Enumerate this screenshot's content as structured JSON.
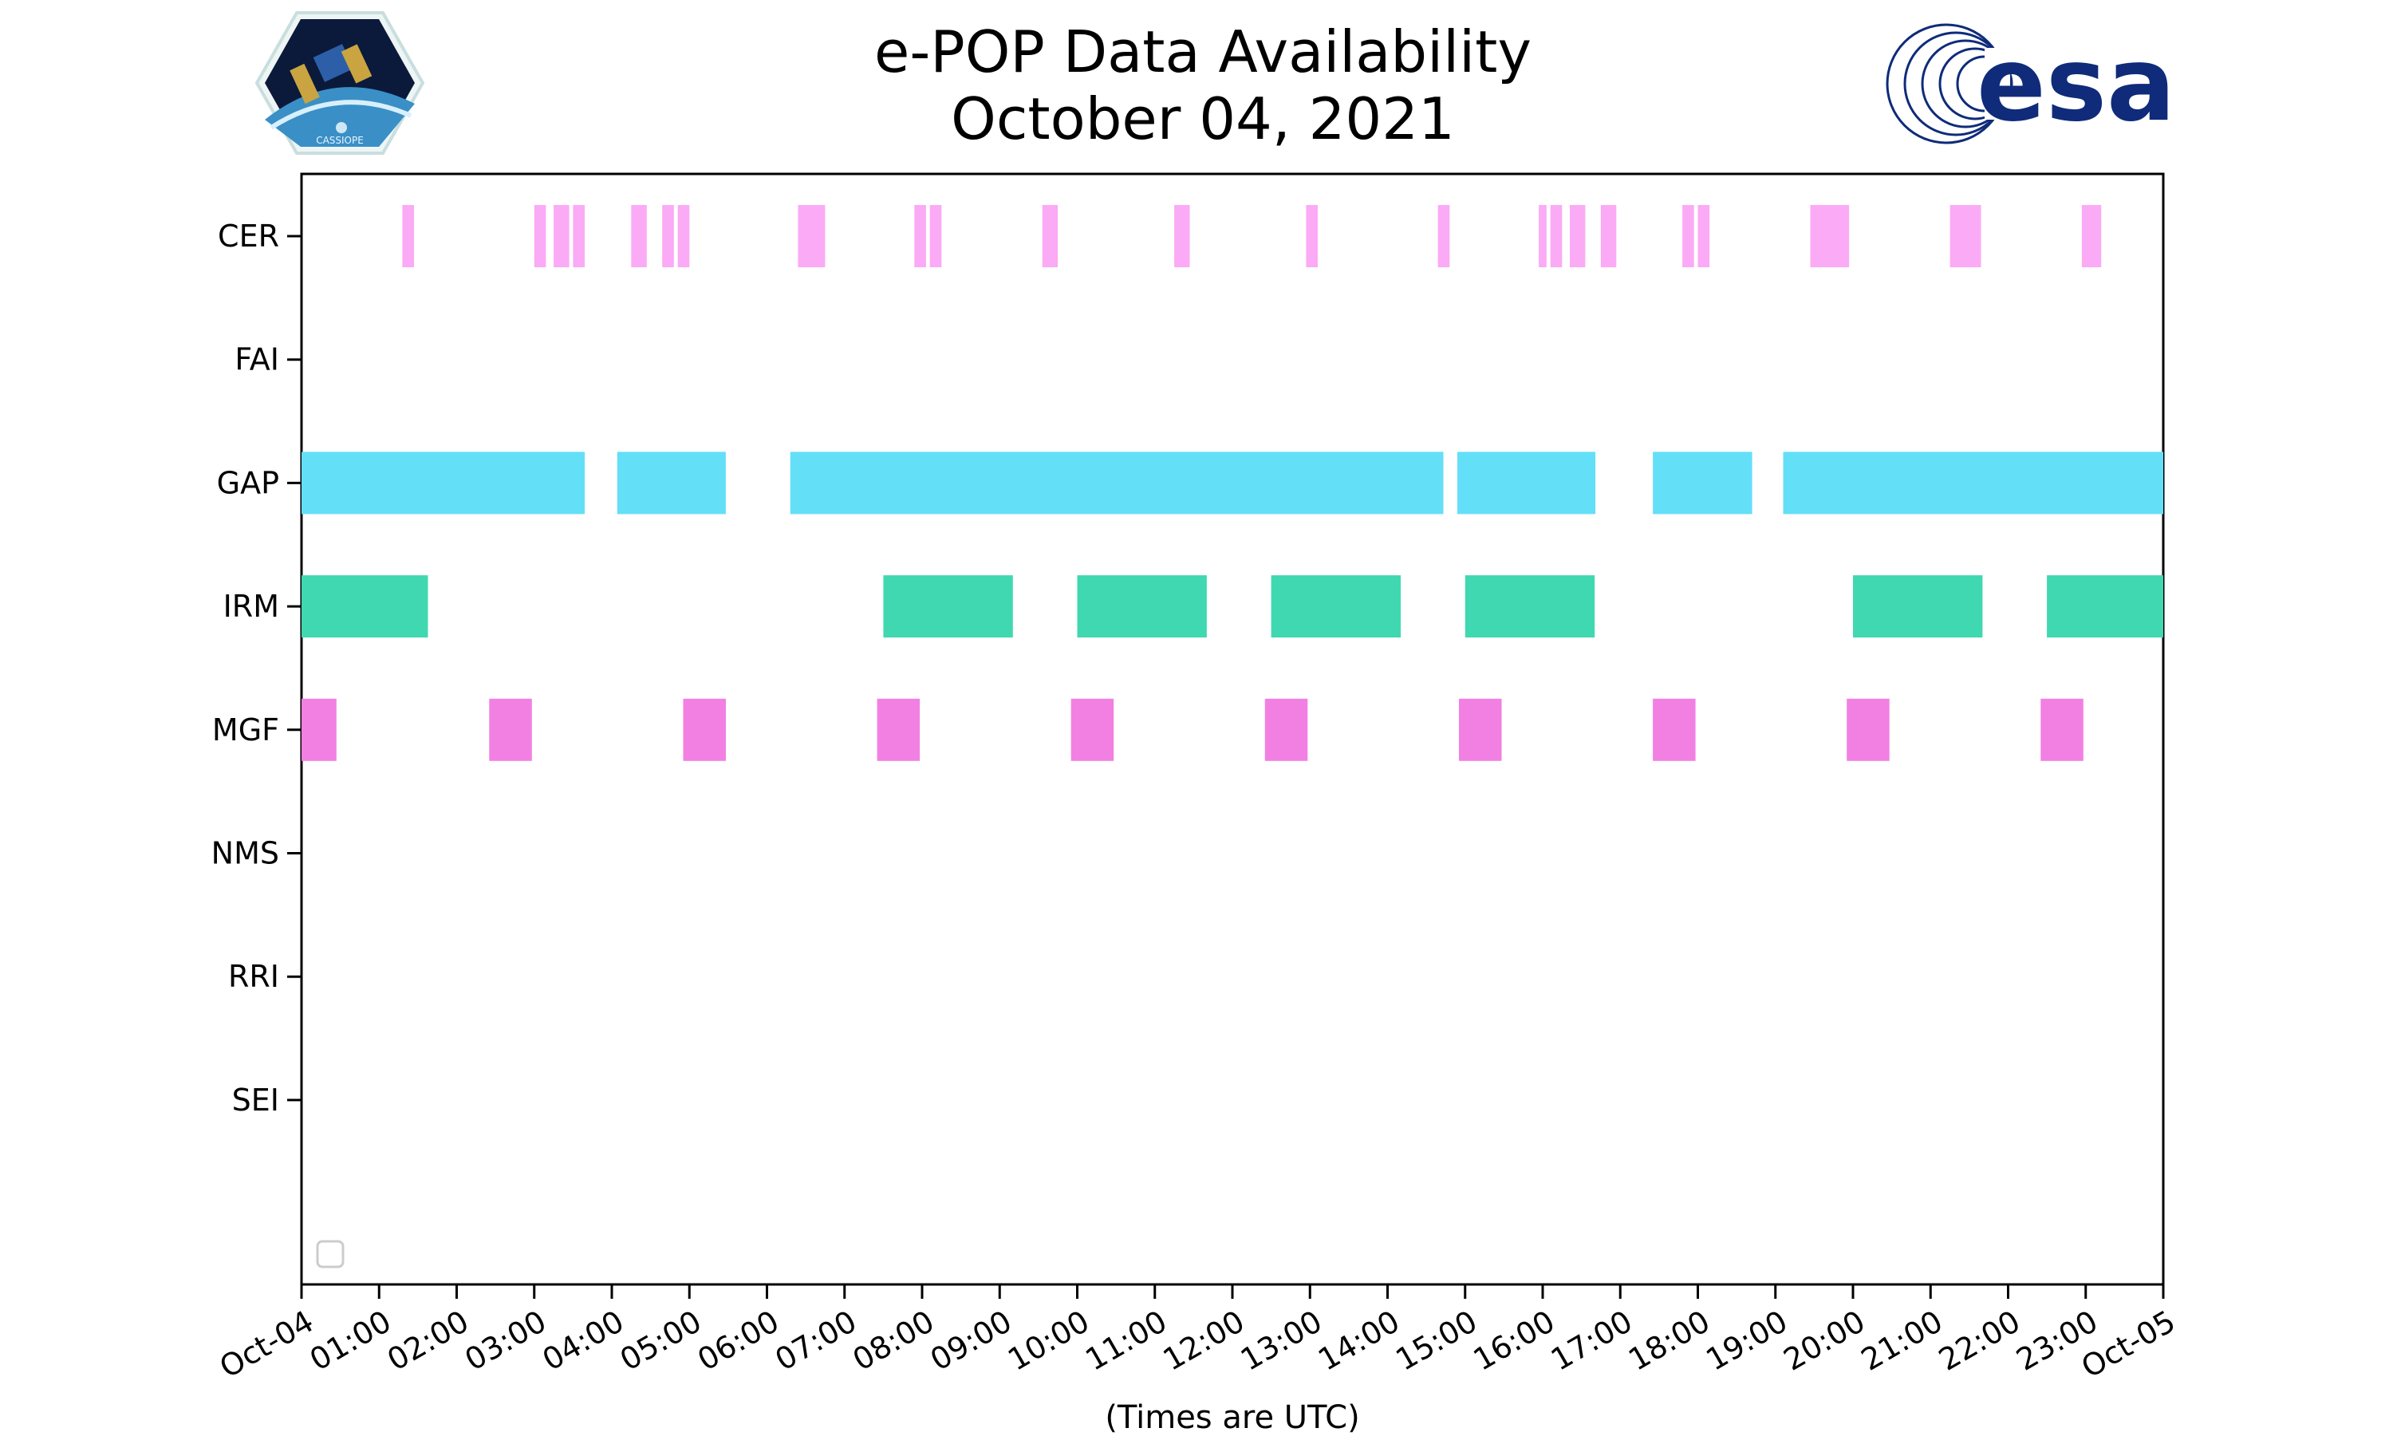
{
  "chart_data": {
    "type": "timeline",
    "title": [
      "e-POP Data Availability",
      "October 04, 2021"
    ],
    "xlabel": "(Times are UTC)",
    "xlim": [
      0,
      24
    ],
    "x_tick_labels": [
      "Oct-04",
      "01:00",
      "02:00",
      "03:00",
      "04:00",
      "05:00",
      "06:00",
      "07:00",
      "08:00",
      "09:00",
      "10:00",
      "11:00",
      "12:00",
      "13:00",
      "14:00",
      "15:00",
      "16:00",
      "17:00",
      "18:00",
      "19:00",
      "20:00",
      "21:00",
      "22:00",
      "23:00",
      "Oct-05"
    ],
    "categories": [
      "CER",
      "FAI",
      "GAP",
      "IRM",
      "MGF",
      "NMS",
      "RRI",
      "SEI"
    ],
    "grid": false,
    "legend": "bottom-left (empty)",
    "series": [
      {
        "name": "CER",
        "color": "#fbaaf5",
        "intervals": [
          [
            1.3,
            1.45
          ],
          [
            3.0,
            3.15
          ],
          [
            3.25,
            3.45
          ],
          [
            3.5,
            3.65
          ],
          [
            4.25,
            4.45
          ],
          [
            4.65,
            4.8
          ],
          [
            4.85,
            5.0
          ],
          [
            6.4,
            6.75
          ],
          [
            7.9,
            8.05
          ],
          [
            8.1,
            8.25
          ],
          [
            9.55,
            9.75
          ],
          [
            11.25,
            11.45
          ],
          [
            12.95,
            13.1
          ],
          [
            14.65,
            14.8
          ],
          [
            15.95,
            16.05
          ],
          [
            16.1,
            16.25
          ],
          [
            16.35,
            16.55
          ],
          [
            16.75,
            16.95
          ],
          [
            17.8,
            17.95
          ],
          [
            18.0,
            18.15
          ],
          [
            19.45,
            19.95
          ],
          [
            21.25,
            21.65
          ],
          [
            22.95,
            23.2
          ]
        ]
      },
      {
        "name": "FAI",
        "color": "#888888",
        "intervals": []
      },
      {
        "name": "GAP",
        "color": "#64dff8",
        "intervals": [
          [
            0.0,
            3.65
          ],
          [
            4.07,
            5.47
          ],
          [
            6.3,
            14.72
          ],
          [
            14.9,
            16.68
          ],
          [
            17.42,
            18.7
          ],
          [
            19.1,
            24.0
          ]
        ]
      },
      {
        "name": "IRM",
        "color": "#40d8b1",
        "intervals": [
          [
            0.0,
            1.63
          ],
          [
            7.5,
            9.17
          ],
          [
            10.0,
            11.67
          ],
          [
            12.5,
            14.17
          ],
          [
            15.0,
            16.67
          ],
          [
            20.0,
            21.67
          ],
          [
            22.5,
            24.0
          ]
        ]
      },
      {
        "name": "MGF",
        "color": "#f280e3",
        "intervals": [
          [
            0.0,
            0.45
          ],
          [
            2.42,
            2.97
          ],
          [
            4.92,
            5.47
          ],
          [
            7.42,
            7.97
          ],
          [
            9.92,
            10.47
          ],
          [
            12.42,
            12.97
          ],
          [
            14.92,
            15.47
          ],
          [
            17.42,
            17.97
          ],
          [
            19.92,
            20.47
          ],
          [
            22.42,
            22.97
          ]
        ]
      },
      {
        "name": "NMS",
        "color": "#888888",
        "intervals": []
      },
      {
        "name": "RRI",
        "color": "#888888",
        "intervals": []
      },
      {
        "name": "SEI",
        "color": "#888888",
        "intervals": []
      }
    ]
  },
  "logos": {
    "left": {
      "name": "CASSIOPE mission logo",
      "text": "CASSIOPE"
    },
    "right": {
      "name": "ESA logo",
      "text": "esa",
      "color": "#0f2b7a"
    }
  }
}
